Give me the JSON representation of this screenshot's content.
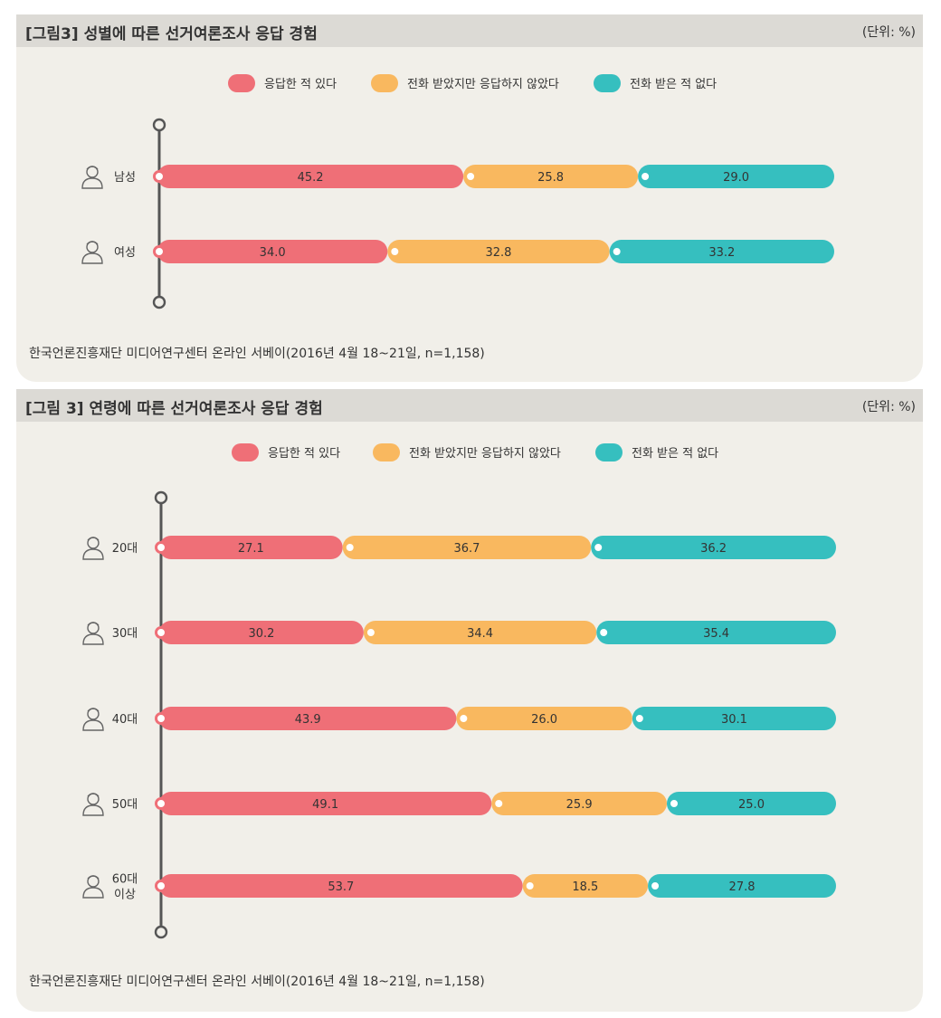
{
  "colors": {
    "answered": "#ef6f77",
    "rejected": "#f9b85f",
    "never": "#36bfbf",
    "axis": "#555555"
  },
  "icons": [
    "man-icon",
    "woman-icon",
    "person-icon"
  ],
  "chart_data": [
    {
      "type": "bar",
      "orientation": "horizontal-stacked",
      "title": "[그림3] 성별에 따른 선거여론조사 응답 경험",
      "unit_label": "(단위: %)",
      "source": "한국언론진흥재단 미디어연구센터 온라인 서베이(2016년 4월 18~21일, n=1,158)",
      "legend": [
        "응답한 적 있다",
        "전화 받았지만 응답하지 않았다",
        "전화 받은 적 없다"
      ],
      "categories": [
        {
          "label": [
            "남성"
          ],
          "icon": "man-icon"
        },
        {
          "label": [
            "여성"
          ],
          "icon": "woman-icon"
        }
      ],
      "series": [
        {
          "name": "응답한 적 있다",
          "values": [
            "45.2",
            "34.0"
          ]
        },
        {
          "name": "전화 받았지만 응답하지 않았다",
          "values": [
            "25.8",
            "32.8"
          ]
        },
        {
          "name": "전화 받은 적 없다",
          "values": [
            "29.0",
            "33.2"
          ]
        }
      ]
    },
    {
      "type": "bar",
      "orientation": "horizontal-stacked",
      "title": "[그림 3] 연령에 따른 선거여론조사 응답 경험",
      "unit_label": "(단위: %)",
      "source": "한국언론진흥재단 미디어연구센터 온라인 서베이(2016년 4월 18~21일, n=1,158)",
      "legend": [
        "응답한 적 있다",
        "전화 받았지만 응답하지 않았다",
        "전화 받은 적 없다"
      ],
      "categories": [
        {
          "label": [
            "20대"
          ],
          "icon": "young-man-icon"
        },
        {
          "label": [
            "30대"
          ],
          "icon": "woman-icon"
        },
        {
          "label": [
            "40대"
          ],
          "icon": "person-icon"
        },
        {
          "label": [
            "50대"
          ],
          "icon": "middle-aged-icon"
        },
        {
          "label": [
            "60대",
            "이상"
          ],
          "icon": "senior-icon"
        }
      ],
      "series": [
        {
          "name": "응답한 적 있다",
          "values": [
            "27.1",
            "30.2",
            "43.9",
            "49.1",
            "53.7"
          ]
        },
        {
          "name": "전화 받았지만 응답하지 않았다",
          "values": [
            "36.7",
            "34.4",
            "26.0",
            "25.9",
            "18.5"
          ]
        },
        {
          "name": "전화 받은 적 없다",
          "values": [
            "36.2",
            "35.4",
            "30.1",
            "25.0",
            "27.8"
          ]
        }
      ]
    }
  ]
}
